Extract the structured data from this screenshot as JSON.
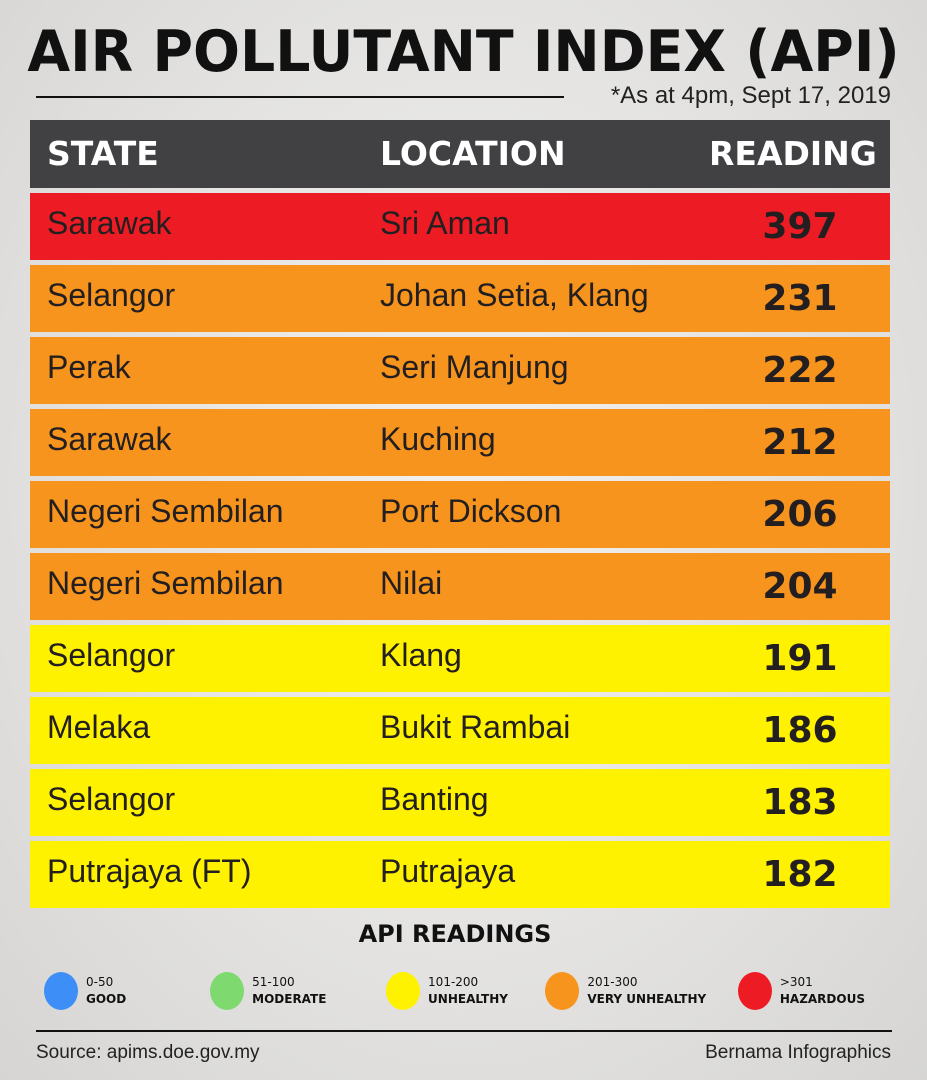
{
  "title": "AIR POLLUTANT INDEX (API)",
  "as_at": "*As at 4pm, Sept 17, 2019",
  "table": {
    "headers": [
      "STATE",
      "LOCATION",
      "READING"
    ],
    "rows": [
      {
        "state": "Sarawak",
        "location": "Sri Aman",
        "reading": "397",
        "color": "#ed1c24"
      },
      {
        "state": "Selangor",
        "location": "Johan Setia, Klang",
        "reading": "231",
        "color": "#f7941d"
      },
      {
        "state": "Perak",
        "location": "Seri Manjung",
        "reading": "222",
        "color": "#f7941d"
      },
      {
        "state": "Sarawak",
        "location": "Kuching",
        "reading": "212",
        "color": "#f7941d"
      },
      {
        "state": "Negeri Sembilan",
        "location": "Port Dickson",
        "reading": "206",
        "color": "#f7941d"
      },
      {
        "state": "Negeri Sembilan",
        "location": "Nilai",
        "reading": "204",
        "color": "#f7941d"
      },
      {
        "state": "Selangor",
        "location": "Klang",
        "reading": "191",
        "color": "#fff200"
      },
      {
        "state": "Melaka",
        "location": "Bukit Rambai",
        "reading": "186",
        "color": "#fff200"
      },
      {
        "state": "Selangor",
        "location": "Banting",
        "reading": "183",
        "color": "#fff200"
      },
      {
        "state": "Putrajaya (FT)",
        "location": "Putrajaya",
        "reading": "182",
        "color": "#fff200"
      }
    ]
  },
  "legend": {
    "title": "API READINGS",
    "items": [
      {
        "range": "0-50",
        "label": "GOOD",
        "color": "#3e8ef7"
      },
      {
        "range": "51-100",
        "label": "MODERATE",
        "color": "#7ed96f"
      },
      {
        "range": "101-200",
        "label": "UNHEALTHY",
        "color": "#fff200"
      },
      {
        "range": "201-300",
        "label": "VERY UNHEALTHY",
        "color": "#f7941d"
      },
      {
        "range": ">301",
        "label": "HAZARDOUS",
        "color": "#ed1c24"
      }
    ]
  },
  "footer": {
    "source": "Source: apims.doe.gov.my",
    "credit": "Bernama Infographics"
  }
}
